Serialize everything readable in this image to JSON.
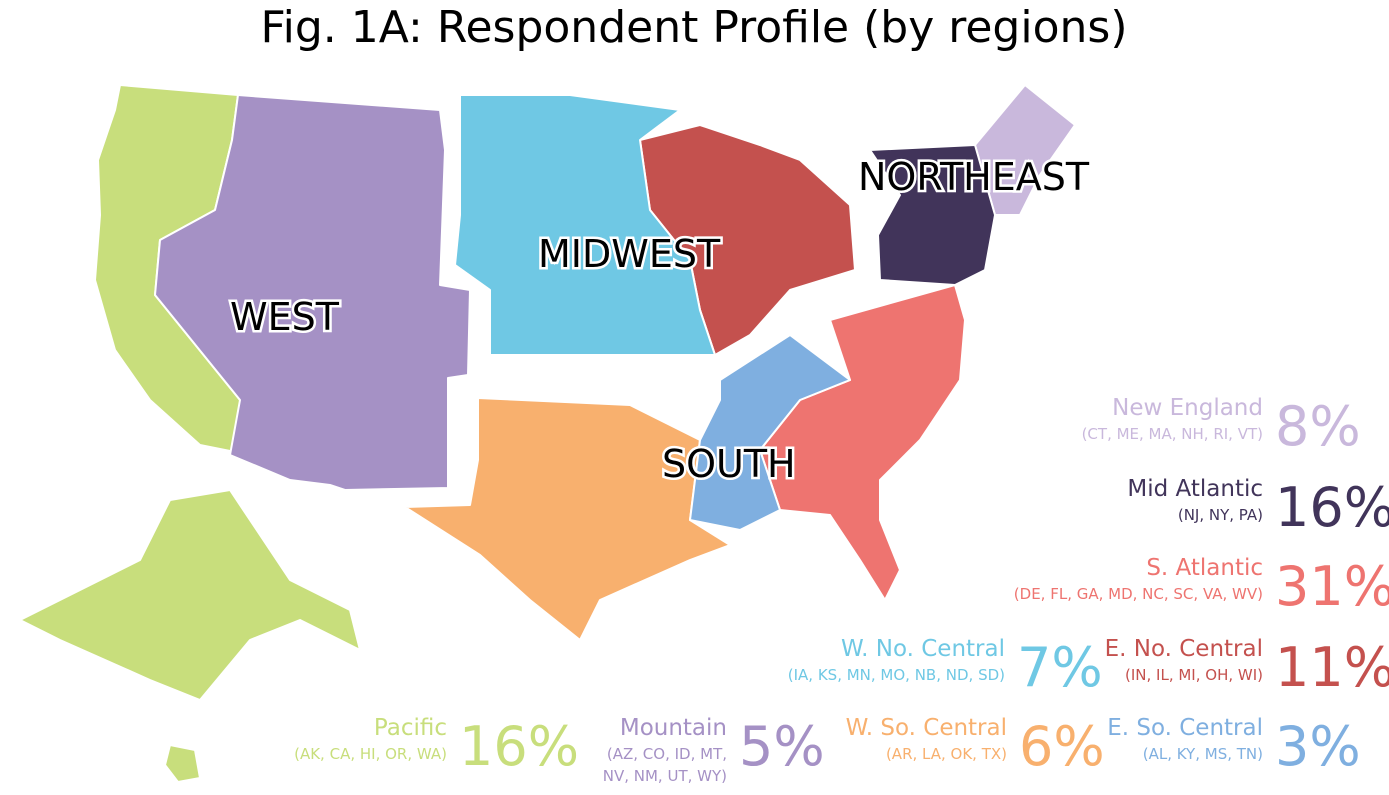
{
  "title": "Fig. 1A: Respondent Profile (by regions)",
  "map_labels": [
    "WEST",
    "MIDWEST",
    "SOUTH",
    "NORTHEAST"
  ],
  "divisions": [
    {
      "name": "New England",
      "states": [
        "(CT, ME, MA, NH, RI, VT)"
      ],
      "share": "8%",
      "color": "#c9b8dc"
    },
    {
      "name": "Mid Atlantic",
      "states": [
        "(NJ, NY, PA)"
      ],
      "share": "16%",
      "color": "#41345a"
    },
    {
      "name": "S. Atlantic",
      "states": [
        "(DE, FL, GA, MD, NC, SC, VA, WV)"
      ],
      "share": "31%",
      "color": "#ee7470"
    },
    {
      "name": "E. No. Central",
      "states": [
        "(IN, IL, MI, OH, WI)"
      ],
      "share": "11%",
      "color": "#c4514e"
    },
    {
      "name": "W. No. Central",
      "states": [
        "(IA, KS, MN, MO, NB, ND, SD)"
      ],
      "share": "7%",
      "color": "#6fc8e4"
    },
    {
      "name": "Pacific",
      "states": [
        "(AK, CA, HI, OR, WA)"
      ],
      "share": "16%",
      "color": "#c8de7c"
    },
    {
      "name": "Mountain",
      "states": [
        "(AZ, CO, ID, MT,",
        "NV, NM, UT, WY)"
      ],
      "share": "5%",
      "color": "#a591c5"
    },
    {
      "name": "W. So. Central",
      "states": [
        "(AR, LA, OK, TX)"
      ],
      "share": "6%",
      "color": "#f8b06e"
    },
    {
      "name": "E. So. Central",
      "states": [
        "(AL, KY, MS, TN)"
      ],
      "share": "3%",
      "color": "#7fafe0"
    }
  ]
}
